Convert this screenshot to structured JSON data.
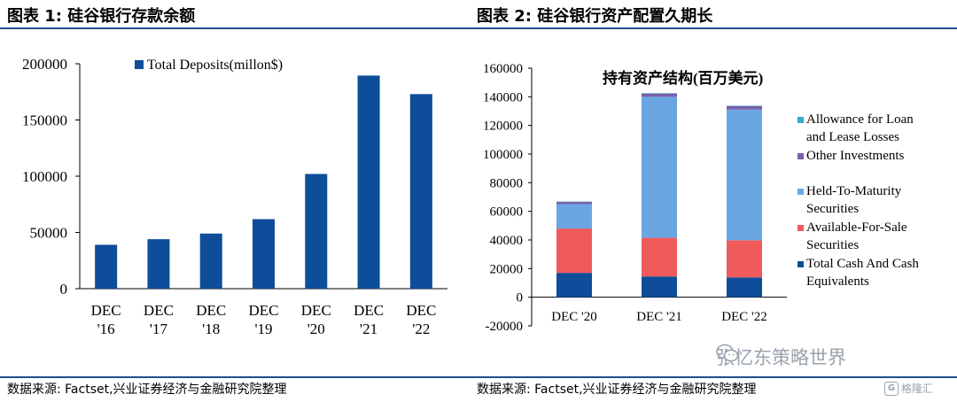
{
  "colors": {
    "rule": "#1f4e8c",
    "bar_blue": "#0d4d9a",
    "cash": "#0d4d9a",
    "afs": "#ef5b5b",
    "htm": "#6aa6e2",
    "other_inv": "#7b5ea7",
    "allowance": "#37aac6"
  },
  "panel1": {
    "title": "图表 1:  硅谷银行存款余额",
    "source": "数据来源:  Factset,兴业证券经济与金融研究院整理"
  },
  "panel2": {
    "title": "图表 2:  硅谷银行资产配置久期长",
    "source": "数据来源:  Factset,兴业证券经济与金融研究院整理"
  },
  "watermark": {
    "text": "张忆东策略世界",
    "icon": "wechat-icon"
  },
  "brand": {
    "text": "格隆汇",
    "icon": "gelonghui-logo"
  },
  "chart_data": [
    {
      "type": "bar",
      "categories": [
        [
          "DEC",
          "'16"
        ],
        [
          "DEC",
          "'17"
        ],
        [
          "DEC",
          "'18"
        ],
        [
          "DEC",
          "'19"
        ],
        [
          "DEC",
          "'20"
        ],
        [
          "DEC",
          "'21"
        ],
        [
          "DEC",
          "'22"
        ]
      ],
      "series": [
        {
          "name": "Total Deposits(millon$)",
          "values": [
            39000,
            44000,
            49000,
            61800,
            102000,
            189500,
            173000
          ]
        }
      ],
      "yticks": [
        0,
        50000,
        100000,
        150000,
        200000
      ],
      "ylim": [
        0,
        200000
      ],
      "legend": "top",
      "grid": false
    },
    {
      "type": "bar",
      "stacked": true,
      "title": "持有资产结构(百万美元)",
      "categories": [
        "DEC '20",
        "DEC '21",
        "DEC '22"
      ],
      "series": [
        {
          "name": "Total Cash And Cash Equivalents",
          "values": [
            17000,
            14500,
            13800
          ]
        },
        {
          "name": "Available-For-Sale Securities",
          "values": [
            31000,
            27000,
            26000
          ]
        },
        {
          "name": "Held-To-Maturity Securities",
          "values": [
            17000,
            98500,
            91300
          ]
        },
        {
          "name": "Other Investments",
          "values": [
            1600,
            2300,
            2400
          ]
        },
        {
          "name": "Allowance for Loan and Lease Losses",
          "values": [
            200,
            250,
            300
          ]
        }
      ],
      "yticks": [
        -20000,
        0,
        20000,
        40000,
        60000,
        80000,
        100000,
        120000,
        140000,
        160000
      ],
      "ylim": [
        -20000,
        160000
      ],
      "legend": "right",
      "grid": false
    }
  ]
}
